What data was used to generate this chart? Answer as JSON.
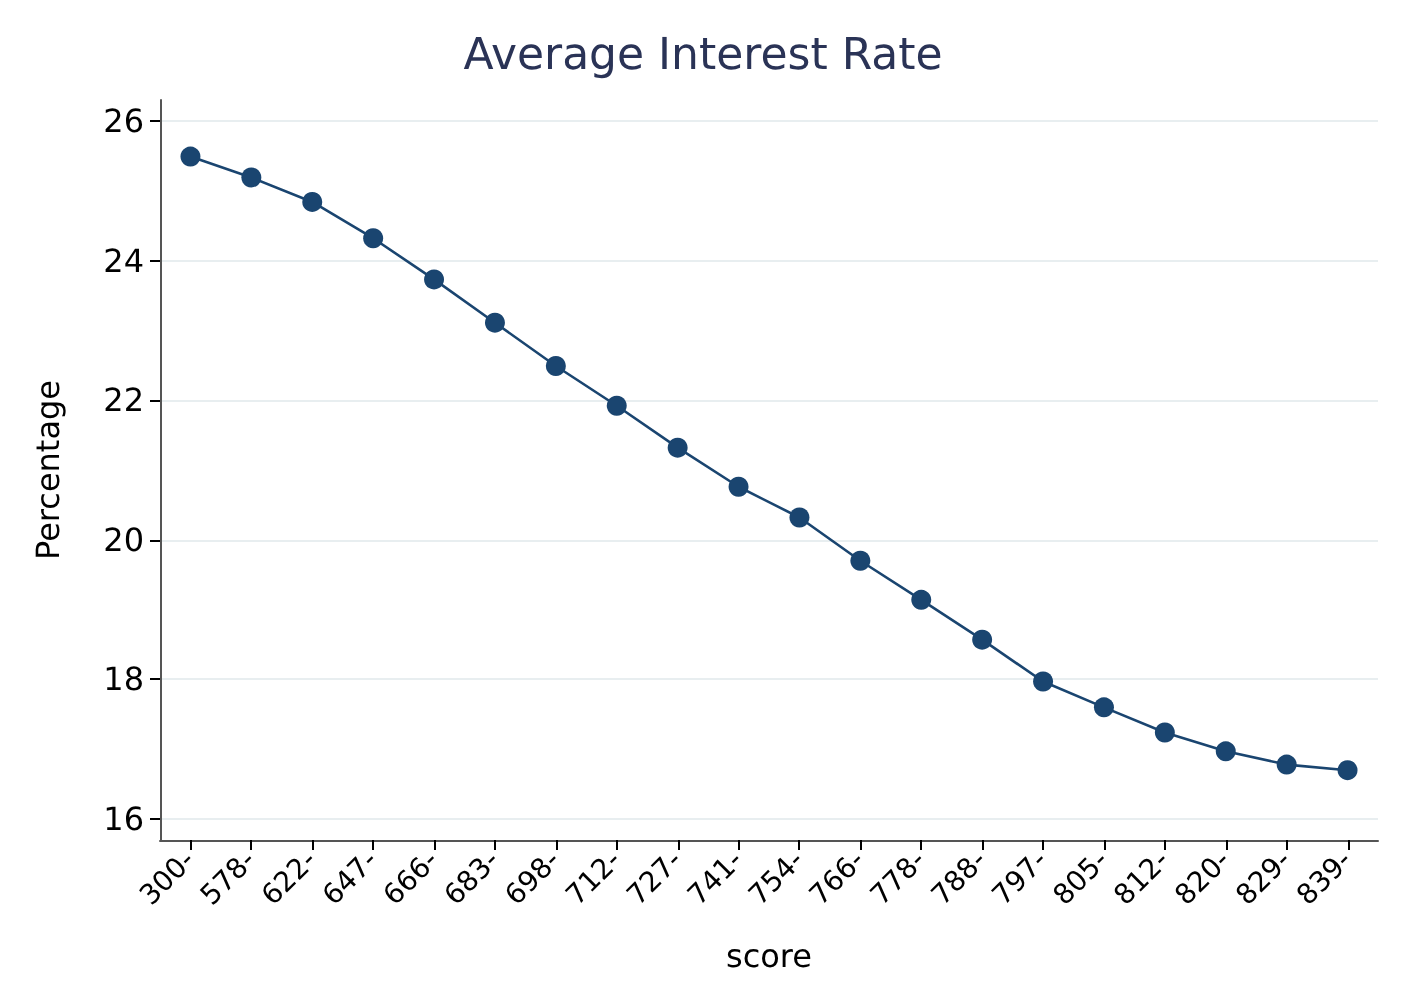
{
  "chart_data": {
    "type": "line",
    "title": "Average Interest Rate",
    "xlabel": "score",
    "ylabel": "Percentage",
    "categories": [
      "300-",
      "578-",
      "622-",
      "647-",
      "666-",
      "683-",
      "698-",
      "712-",
      "727-",
      "741-",
      "754-",
      "766-",
      "778-",
      "788-",
      "797-",
      "805-",
      "812-",
      "820-",
      "829-",
      "839-"
    ],
    "series": [
      {
        "color": "#1a4570",
        "values": [
          25.49,
          25.19,
          24.84,
          24.32,
          23.73,
          23.11,
          22.49,
          21.92,
          21.32,
          20.76,
          20.32,
          19.7,
          19.14,
          18.57,
          17.97,
          17.6,
          17.24,
          16.97,
          16.78,
          16.7
        ]
      }
    ],
    "ylim": [
      15.7,
      26.3
    ],
    "yticks": [
      16,
      18,
      20,
      22,
      24,
      26
    ],
    "grid": "y",
    "marker": "circle",
    "line_style": "solid"
  }
}
